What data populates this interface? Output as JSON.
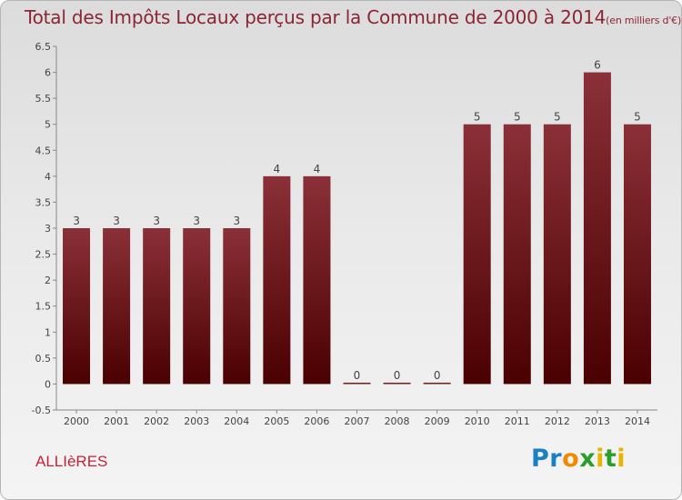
{
  "title": {
    "main": "Total des Impôts Locaux perçus par la Commune de 2000 à 2014",
    "unit": "(en milliers d'€)"
  },
  "commune": "ALLIèRES",
  "logo": "Proxiti",
  "colors": {
    "title": "#8a2634",
    "bar_top": "#8b3038",
    "bar_bottom": "#4a0000",
    "commune": "#c0243a"
  },
  "chart_data": {
    "type": "bar",
    "categories": [
      "2000",
      "2001",
      "2002",
      "2003",
      "2004",
      "2005",
      "2006",
      "2007",
      "2008",
      "2009",
      "2010",
      "2011",
      "2012",
      "2013",
      "2014"
    ],
    "values": [
      3,
      3,
      3,
      3,
      3,
      4,
      4,
      0,
      0,
      0,
      5,
      5,
      5,
      6,
      5
    ],
    "title": "Total des Impôts Locaux perçus par la Commune de 2000 à 2014",
    "xlabel": "",
    "ylabel": "",
    "ylim": [
      -0.5,
      6.5
    ],
    "yticks": [
      -0.5,
      0,
      0.5,
      1,
      1.5,
      2,
      2.5,
      3,
      3.5,
      4,
      4.5,
      5,
      5.5,
      6,
      6.5
    ],
    "grid": false,
    "legend": "none"
  }
}
